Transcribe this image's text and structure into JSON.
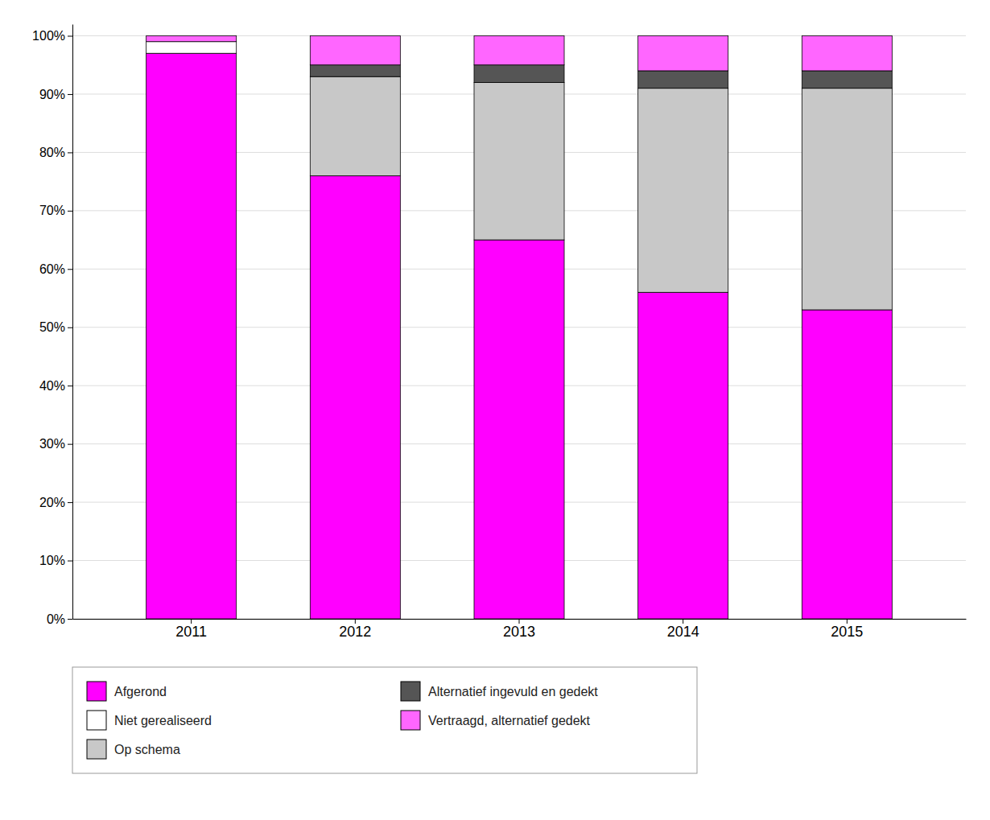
{
  "chart_data": {
    "type": "bar",
    "stacked": true,
    "categories": [
      "2011",
      "2012",
      "2013",
      "2014",
      "2015"
    ],
    "series": [
      {
        "name": "Afgerond",
        "color": "#FF00FF",
        "values": [
          97,
          76,
          65,
          56,
          53
        ]
      },
      {
        "name": "Niet gerealiseerd",
        "color": "#FFFFFF",
        "values": [
          2,
          0,
          0,
          0,
          0
        ]
      },
      {
        "name": "Op schema",
        "color": "#C8C8C8",
        "values": [
          0,
          17,
          27,
          35,
          38
        ]
      },
      {
        "name": "Alternatief ingevuld en gedekt",
        "color": "#555555",
        "values": [
          0,
          2,
          3,
          3,
          3
        ]
      },
      {
        "name": "Vertraagd, alternatief gedekt",
        "color": "#FF66FF",
        "values": [
          1,
          5,
          5,
          6,
          6
        ]
      }
    ],
    "ylim": [
      0,
      102
    ],
    "yticks": [
      {
        "value": 0,
        "label": "0%"
      },
      {
        "value": 10,
        "label": "10%"
      },
      {
        "value": 20,
        "label": "20%"
      },
      {
        "value": 30,
        "label": "30%"
      },
      {
        "value": 40,
        "label": "40%"
      },
      {
        "value": 50,
        "label": "50%"
      },
      {
        "value": 60,
        "label": "60%"
      },
      {
        "value": 70,
        "label": "70%"
      },
      {
        "value": 80,
        "label": "80%"
      },
      {
        "value": 90,
        "label": "90%"
      },
      {
        "value": 100,
        "label": "100%"
      }
    ],
    "grid": true,
    "legend": "bottom"
  }
}
